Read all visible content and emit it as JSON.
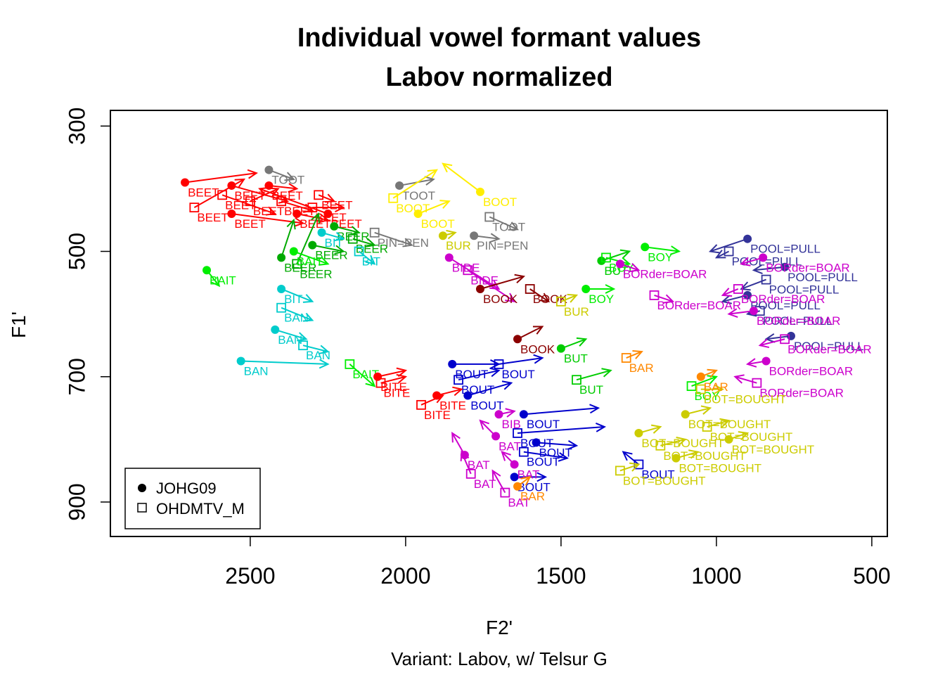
{
  "chart_data": {
    "type": "scatter",
    "title_line1": "Individual vowel formant values",
    "title_line2": "Labov normalized",
    "xlabel": "F2'",
    "ylabel": "F1'",
    "subtitle": "Variant: Labov, w/ Telsur G",
    "x_reversed": true,
    "y_reversed": true,
    "xlim": [
      2950,
      500
    ],
    "ylim": [
      300,
      950
    ],
    "x_ticks": [
      "2500",
      "2000",
      "1500",
      "1000",
      "500"
    ],
    "x_tick_values": [
      2500,
      2000,
      1500,
      1000,
      500
    ],
    "y_ticks": [
      "300",
      "500",
      "700",
      "900"
    ],
    "y_tick_values": [
      300,
      500,
      700,
      900
    ],
    "legend_placement": "bottom-left",
    "legend": [
      {
        "name": "JOHG09",
        "symbol": "filled-circle"
      },
      {
        "name": "OHDMTV_M",
        "symbol": "open-square"
      }
    ],
    "vowels": [
      {
        "label": "BEET",
        "color": "#ff0000",
        "points": [
          [
            2710,
            390
          ],
          [
            2680,
            430
          ],
          [
            2560,
            395
          ],
          [
            2590,
            410
          ],
          [
            2560,
            440
          ],
          [
            2400,
            420
          ],
          [
            2350,
            440
          ],
          [
            2300,
            430
          ],
          [
            2250,
            440
          ],
          [
            2500,
            420
          ],
          [
            2440,
            395
          ],
          [
            2280,
            410
          ]
        ],
        "targets": [
          [
            2480,
            375
          ],
          [
            2520,
            385
          ],
          [
            2380,
            420
          ],
          [
            2420,
            440
          ],
          [
            2330,
            455
          ],
          [
            2300,
            435
          ],
          [
            2250,
            450
          ],
          [
            2200,
            430
          ],
          [
            2470,
            400
          ],
          [
            2410,
            400
          ],
          [
            2350,
            400
          ],
          [
            2230,
            420
          ]
        ]
      },
      {
        "label": "BEER",
        "color": "#00aa00",
        "points": [
          [
            2400,
            510
          ],
          [
            2350,
            520
          ],
          [
            2230,
            460
          ],
          [
            2170,
            480
          ],
          [
            2300,
            490
          ]
        ],
        "targets": [
          [
            2360,
            450
          ],
          [
            2280,
            440
          ],
          [
            2150,
            470
          ],
          [
            2100,
            490
          ],
          [
            2200,
            500
          ]
        ]
      },
      {
        "label": "BAIT",
        "color": "#00ee00",
        "points": [
          [
            2640,
            530
          ],
          [
            2180,
            680
          ],
          [
            2360,
            500
          ]
        ],
        "targets": [
          [
            2600,
            555
          ],
          [
            2100,
            715
          ],
          [
            2250,
            520
          ]
        ]
      },
      {
        "label": "BIT",
        "color": "#00cccc",
        "points": [
          [
            2270,
            470
          ],
          [
            2150,
            500
          ],
          [
            2400,
            560
          ]
        ],
        "targets": [
          [
            2200,
            480
          ],
          [
            2100,
            520
          ],
          [
            2300,
            580
          ]
        ]
      },
      {
        "label": "BAN",
        "color": "#00cccc",
        "points": [
          [
            2530,
            675
          ],
          [
            2400,
            590
          ],
          [
            2420,
            625
          ],
          [
            2330,
            650
          ]
        ],
        "targets": [
          [
            2250,
            680
          ],
          [
            2300,
            610
          ],
          [
            2320,
            640
          ],
          [
            2250,
            660
          ]
        ]
      },
      {
        "label": "TOOT",
        "color": "#777777",
        "points": [
          [
            2020,
            395
          ],
          [
            1730,
            445
          ],
          [
            2440,
            370
          ]
        ],
        "targets": [
          [
            1910,
            385
          ],
          [
            1640,
            465
          ],
          [
            2360,
            385
          ]
        ]
      },
      {
        "label": "BOOT",
        "color": "#ffee00",
        "points": [
          [
            1760,
            405
          ],
          [
            2040,
            415
          ],
          [
            1960,
            440
          ]
        ],
        "targets": [
          [
            1880,
            360
          ],
          [
            1900,
            370
          ],
          [
            1860,
            420
          ]
        ]
      },
      {
        "label": "PIN=PEN",
        "color": "#777777",
        "points": [
          [
            1780,
            475
          ],
          [
            2100,
            470
          ]
        ],
        "targets": [
          [
            1700,
            480
          ],
          [
            1980,
            490
          ]
        ]
      },
      {
        "label": "BIDE",
        "color": "#cc00cc",
        "points": [
          [
            1860,
            510
          ],
          [
            1800,
            530
          ]
        ],
        "targets": [
          [
            1700,
            560
          ],
          [
            1650,
            580
          ]
        ]
      },
      {
        "label": "BOOK",
        "color": "#8b0000",
        "points": [
          [
            1760,
            560
          ],
          [
            1600,
            560
          ],
          [
            1640,
            640
          ]
        ],
        "targets": [
          [
            1620,
            540
          ],
          [
            1540,
            580
          ],
          [
            1560,
            620
          ]
        ]
      },
      {
        "label": "BUT",
        "color": "#00cc00",
        "points": [
          [
            1500,
            655
          ],
          [
            1450,
            705
          ],
          [
            1370,
            515
          ]
        ],
        "targets": [
          [
            1420,
            640
          ],
          [
            1340,
            690
          ],
          [
            1280,
            500
          ]
        ]
      },
      {
        "label": "BOY",
        "color": "#00ee00",
        "points": [
          [
            1230,
            493
          ],
          [
            1355,
            510
          ],
          [
            1420,
            560
          ],
          [
            1080,
            715
          ]
        ],
        "targets": [
          [
            1120,
            500
          ],
          [
            1280,
            520
          ],
          [
            1330,
            560
          ],
          [
            1000,
            700
          ]
        ]
      },
      {
        "label": "POOL=PULL",
        "color": "#333399",
        "points": [
          [
            900,
            480
          ],
          [
            960,
            500
          ],
          [
            780,
            525
          ],
          [
            840,
            545
          ],
          [
            900,
            570
          ],
          [
            860,
            595
          ],
          [
            760,
            635
          ]
        ],
        "targets": [
          [
            1020,
            500
          ],
          [
            1000,
            510
          ],
          [
            880,
            530
          ],
          [
            920,
            560
          ],
          [
            980,
            580
          ],
          [
            900,
            600
          ],
          [
            840,
            640
          ]
        ]
      },
      {
        "label": "BORder=BOAR",
        "color": "#cc00cc",
        "points": [
          [
            850,
            510
          ],
          [
            930,
            560
          ],
          [
            880,
            595
          ],
          [
            780,
            640
          ],
          [
            840,
            675
          ],
          [
            870,
            710
          ],
          [
            1310,
            520
          ],
          [
            1200,
            570
          ]
        ],
        "targets": [
          [
            920,
            520
          ],
          [
            980,
            570
          ],
          [
            960,
            600
          ],
          [
            860,
            650
          ],
          [
            900,
            680
          ],
          [
            940,
            700
          ],
          [
            1250,
            530
          ],
          [
            1140,
            580
          ]
        ]
      },
      {
        "label": "BOUT",
        "color": "#0000cc",
        "points": [
          [
            1620,
            760
          ],
          [
            1640,
            790
          ],
          [
            1580,
            805
          ],
          [
            1620,
            820
          ],
          [
            1650,
            860
          ],
          [
            1250,
            840
          ],
          [
            1850,
            680
          ],
          [
            1830,
            705
          ],
          [
            1800,
            730
          ],
          [
            1700,
            680
          ]
        ],
        "targets": [
          [
            1380,
            750
          ],
          [
            1360,
            780
          ],
          [
            1450,
            810
          ],
          [
            1480,
            830
          ],
          [
            1550,
            860
          ],
          [
            1300,
            820
          ],
          [
            1700,
            680
          ],
          [
            1700,
            690
          ],
          [
            1660,
            710
          ],
          [
            1560,
            670
          ]
        ]
      },
      {
        "label": "BOT=BOUGHT",
        "color": "#cccc00",
        "points": [
          [
            1250,
            790
          ],
          [
            1180,
            810
          ],
          [
            1130,
            830
          ],
          [
            1310,
            850
          ],
          [
            1100,
            760
          ],
          [
            1030,
            780
          ],
          [
            960,
            800
          ],
          [
            1050,
            720
          ]
        ],
        "targets": [
          [
            1180,
            780
          ],
          [
            1100,
            800
          ],
          [
            1060,
            820
          ],
          [
            1250,
            840
          ],
          [
            1020,
            750
          ],
          [
            960,
            770
          ],
          [
            900,
            790
          ],
          [
            980,
            720
          ]
        ]
      },
      {
        "label": "BAT",
        "color": "#cc00cc",
        "points": [
          [
            1810,
            825
          ],
          [
            1790,
            855
          ],
          [
            1710,
            795
          ],
          [
            1680,
            885
          ],
          [
            1650,
            840
          ]
        ],
        "targets": [
          [
            1850,
            790
          ],
          [
            1820,
            820
          ],
          [
            1760,
            770
          ],
          [
            1720,
            850
          ],
          [
            1690,
            820
          ]
        ]
      },
      {
        "label": "BAR",
        "color": "#ff8800",
        "points": [
          [
            1640,
            875
          ],
          [
            1290,
            670
          ],
          [
            1050,
            700
          ]
        ],
        "targets": [
          [
            1600,
            860
          ],
          [
            1240,
            660
          ],
          [
            1000,
            690
          ]
        ]
      },
      {
        "label": "BITE",
        "color": "#ff0000",
        "points": [
          [
            2090,
            700
          ],
          [
            2080,
            710
          ],
          [
            1900,
            730
          ],
          [
            1950,
            745
          ]
        ],
        "targets": [
          [
            2000,
            690
          ],
          [
            2000,
            700
          ],
          [
            1820,
            720
          ],
          [
            1880,
            730
          ]
        ]
      },
      {
        "label": "BUR",
        "color": "#cccc00",
        "points": [
          [
            1880,
            475
          ],
          [
            1500,
            580
          ]
        ],
        "targets": [
          [
            1840,
            470
          ],
          [
            1450,
            570
          ]
        ]
      },
      {
        "label": "BIB",
        "color": "#cc00cc",
        "points": [
          [
            1700,
            760
          ]
        ],
        "targets": [
          [
            1650,
            755
          ]
        ]
      }
    ]
  }
}
